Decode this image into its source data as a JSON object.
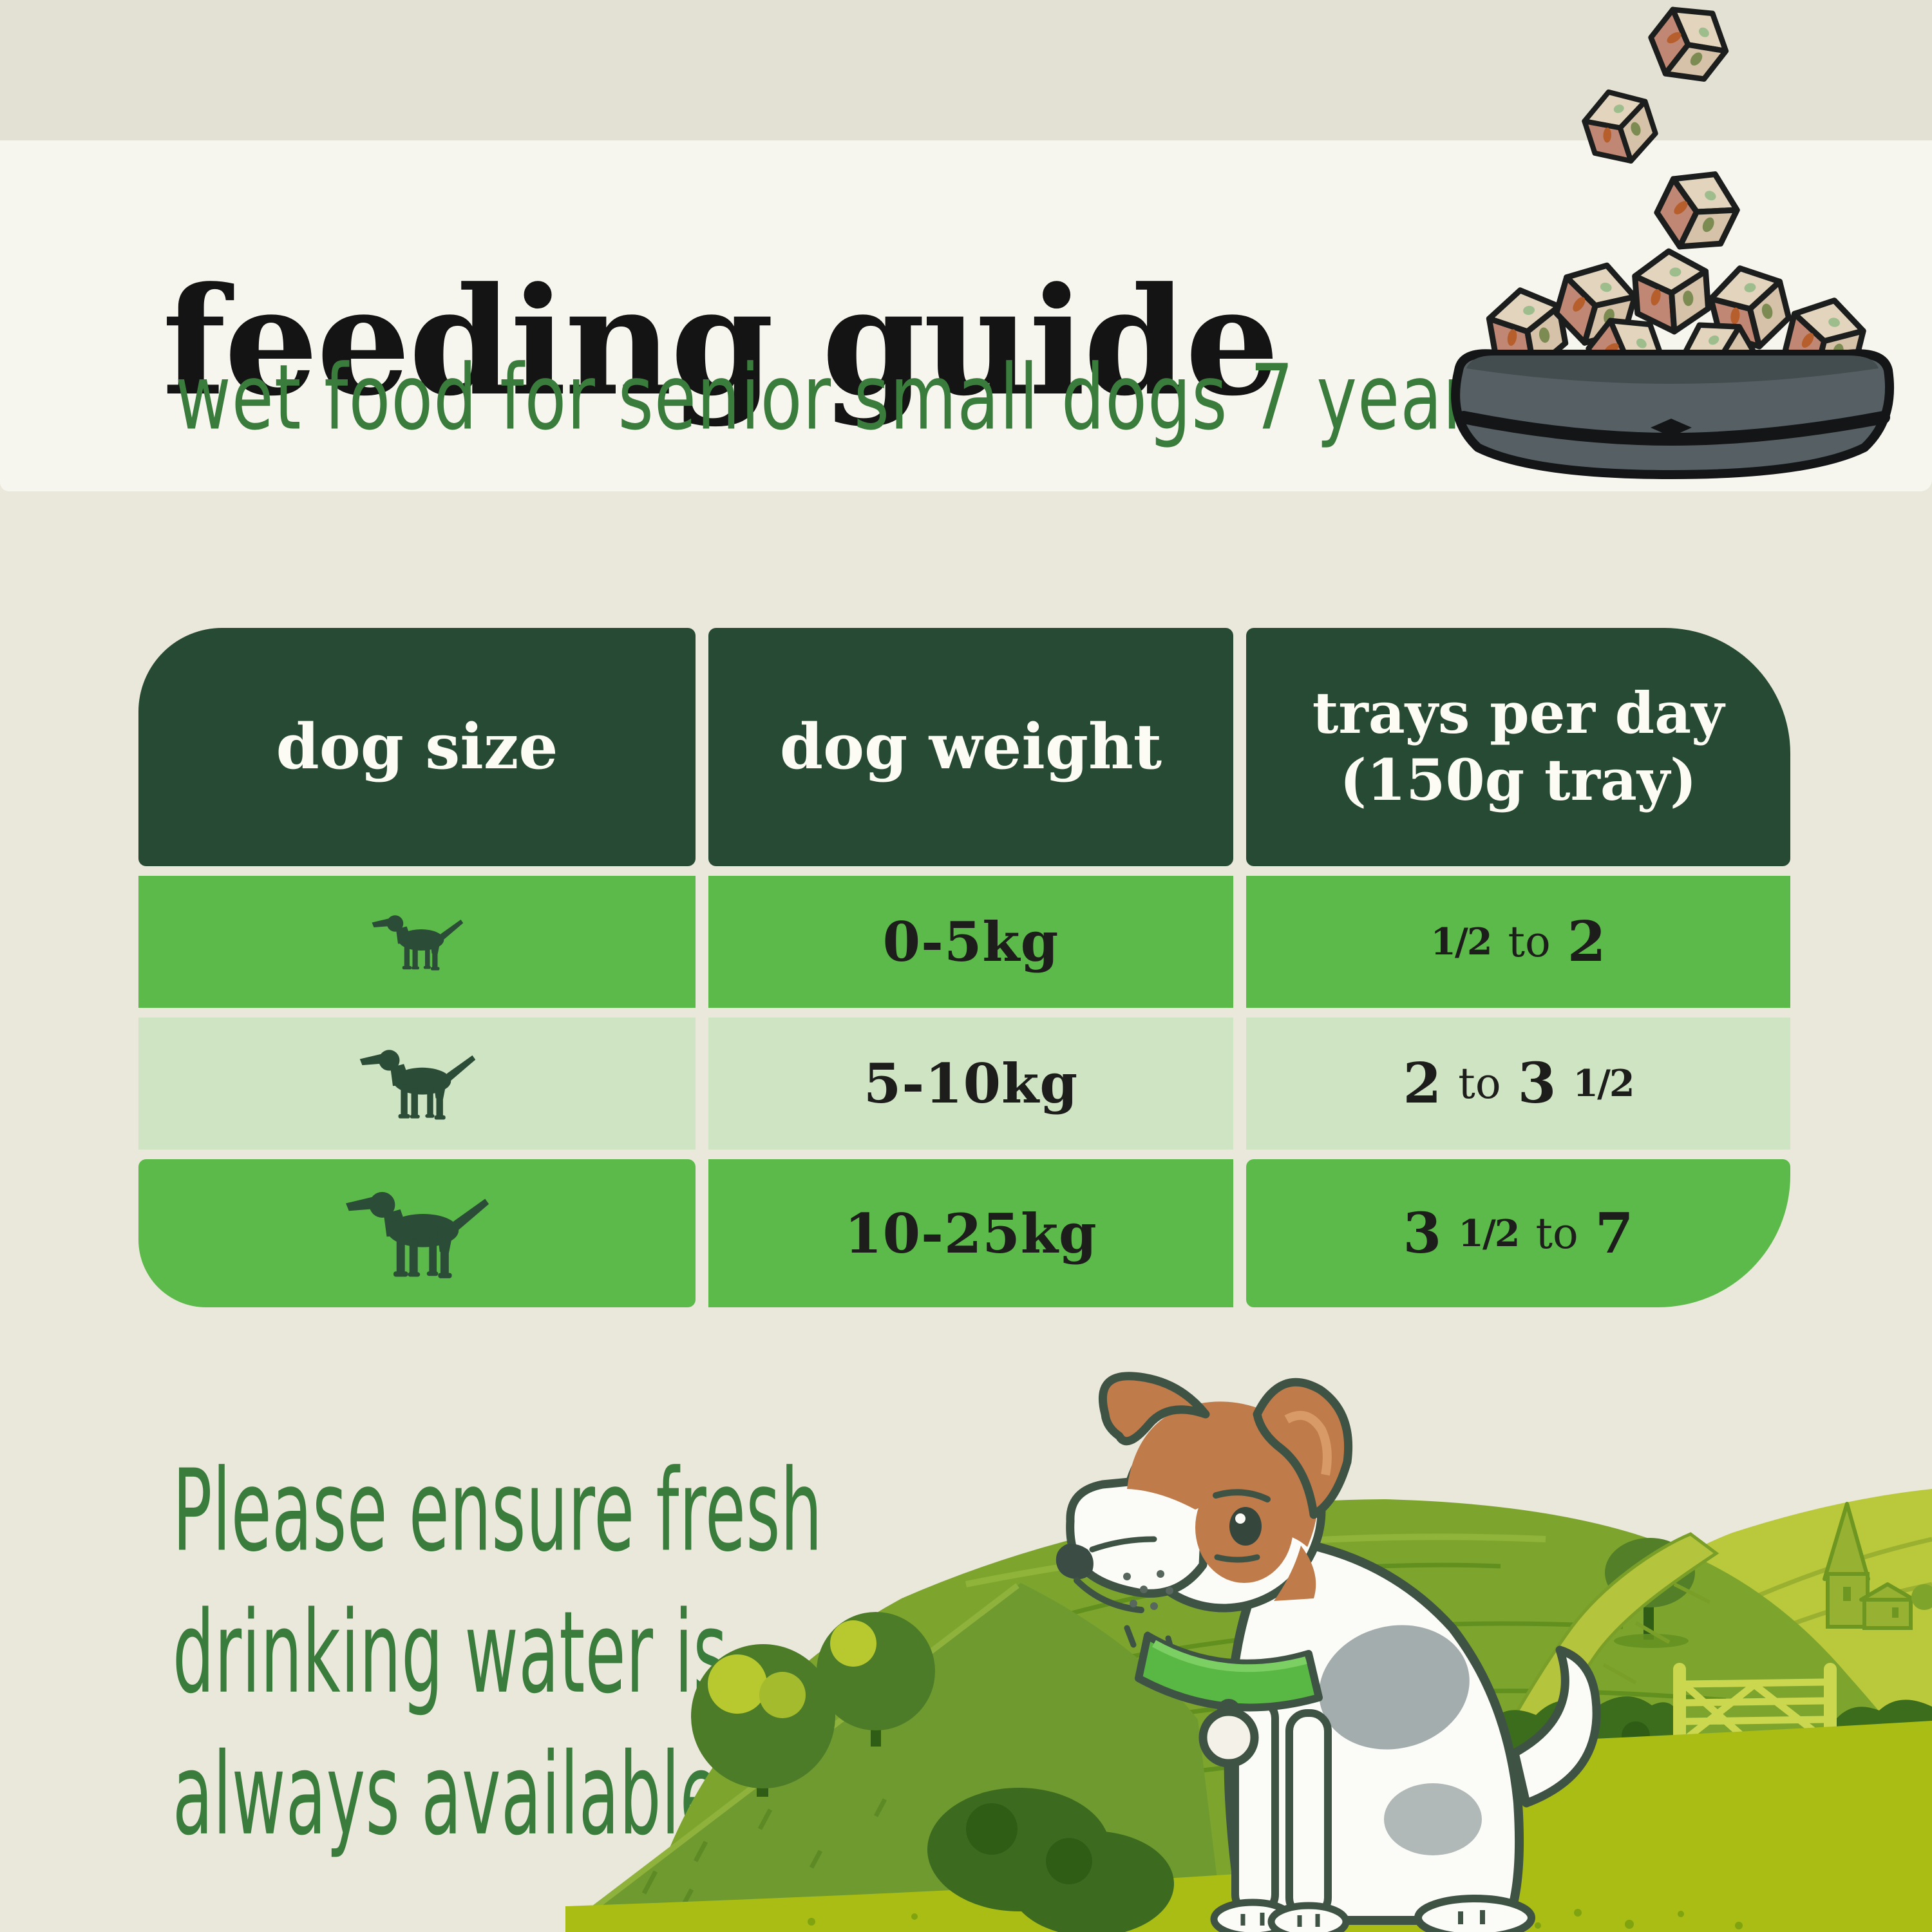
{
  "palette": {
    "top_strip": "#e3e1d3",
    "title_band": "#f7f6ee",
    "background": "#eae8db",
    "ink": "#141414",
    "hand_green": "#3a7c3b",
    "header_green": "#264a33",
    "header_text": "#fdfcf4",
    "row_green": "#5bba49",
    "row_pale": "#cfe4c3",
    "cell_text": "#1d1d1b",
    "dog_icon": "#2b4c36",
    "collar_green": "#58b843",
    "dog_outline": "#3f5345",
    "bowl_grey": "#566064",
    "cube_tan": "#d6c2a8",
    "cube_pink": "#c08874",
    "lawn_green": "#a9bd15",
    "hill_green": "#7da52e",
    "far_hill_green": "#bac83c"
  },
  "header": {
    "title": "feeding guide",
    "subtitle": "wet food for senior small dogs 7 years+"
  },
  "table": {
    "col1": "dog size",
    "col2": "dog weight",
    "col3_line1": "trays per day",
    "col3_line2": "(150g tray)",
    "rows": [
      {
        "size_label": "small",
        "weight": "0-5kg",
        "trays": [
          {
            "text": "1/2",
            "style": "frac"
          },
          {
            "text": "to",
            "style": "word"
          },
          {
            "text": "2",
            "style": "num"
          }
        ]
      },
      {
        "size_label": "medium",
        "weight": "5-10kg",
        "trays": [
          {
            "text": "2",
            "style": "num"
          },
          {
            "text": "to",
            "style": "word"
          },
          {
            "text": "3",
            "style": "num"
          },
          {
            "text": "1/2",
            "style": "frac"
          }
        ]
      },
      {
        "size_label": "large",
        "weight": "10-25kg",
        "trays": [
          {
            "text": "3",
            "style": "num"
          },
          {
            "text": "1/2",
            "style": "frac"
          },
          {
            "text": "to",
            "style": "word"
          },
          {
            "text": "7",
            "style": "num"
          }
        ]
      }
    ]
  },
  "note": {
    "lines": [
      "Please ensure fresh",
      "drinking water is",
      "always available."
    ]
  }
}
